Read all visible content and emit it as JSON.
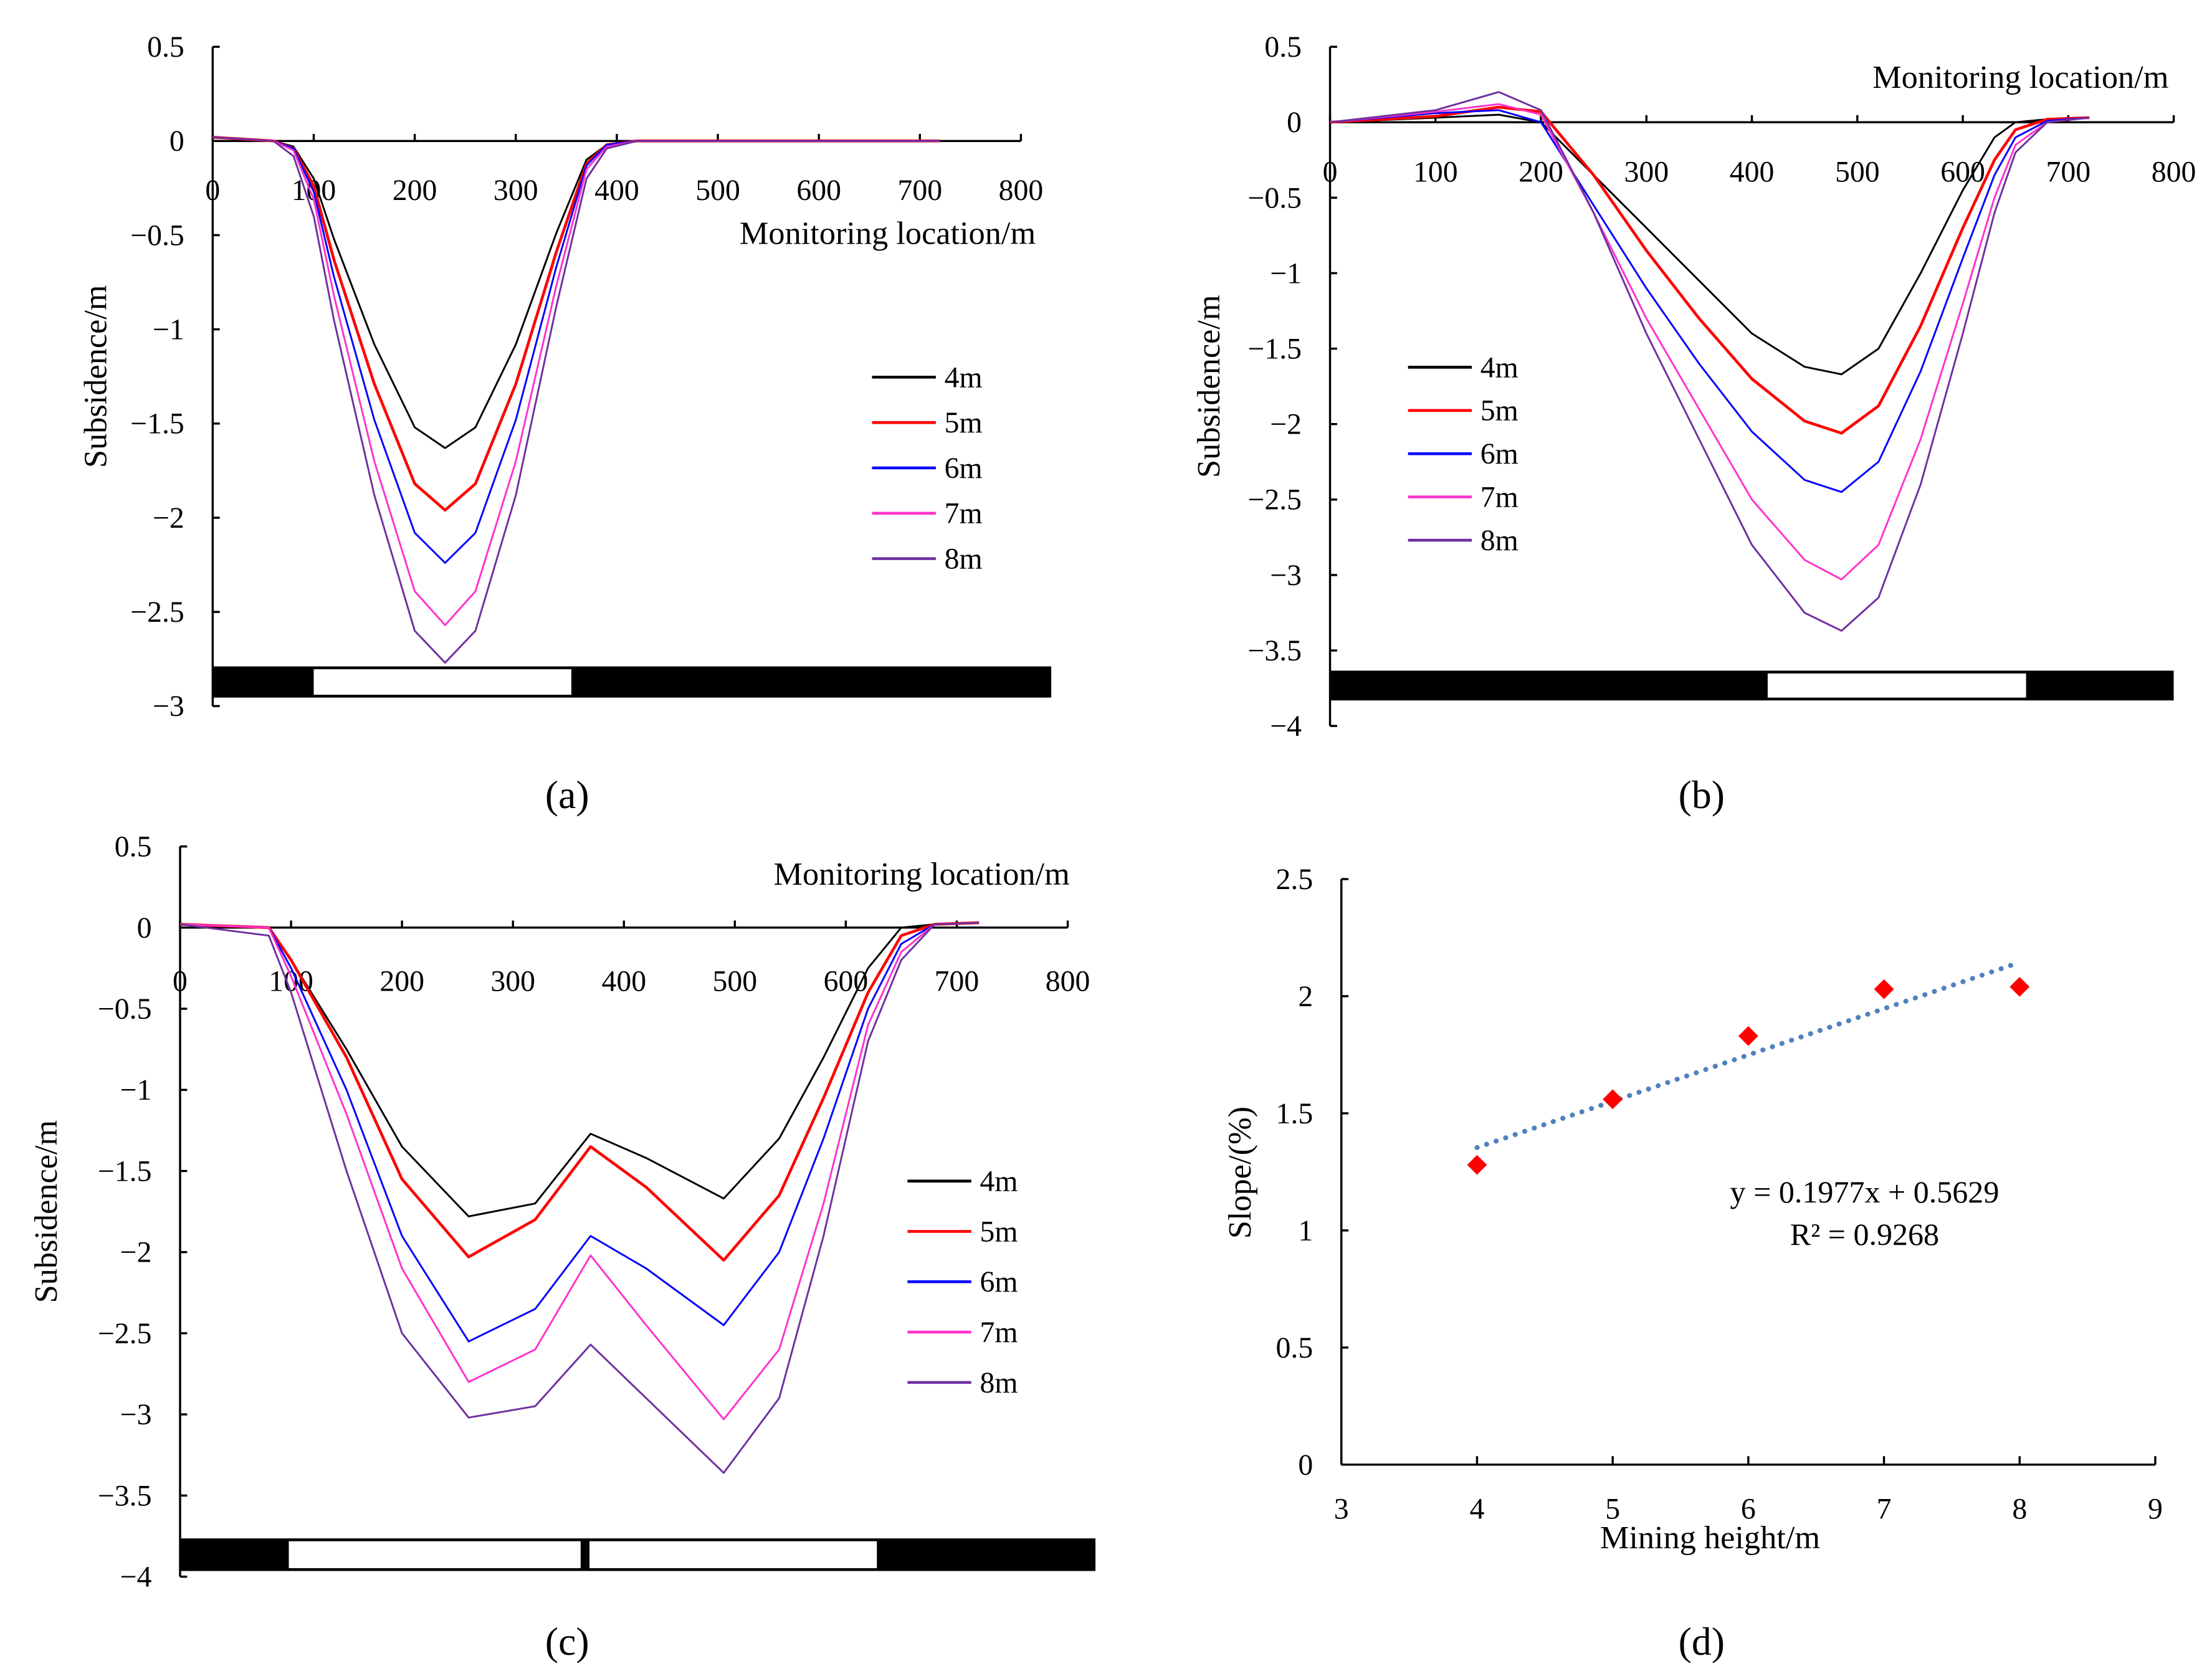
{
  "chart_data": [
    {
      "id": "a",
      "type": "line",
      "panel_label": "(a)",
      "xlabel": "Monitoring location/m",
      "ylabel": "Subsidence/m",
      "xlim": [
        0,
        800
      ],
      "ylim": [
        -3,
        0.5
      ],
      "xticks": [
        0,
        100,
        200,
        300,
        400,
        500,
        600,
        700,
        800
      ],
      "yticks": [
        0.5,
        0,
        -0.5,
        -1,
        -1.5,
        -2,
        -2.5,
        -3
      ],
      "ytick_labels": [
        "0.5",
        "0",
        "−0.5",
        "−1",
        "−1.5",
        "−2",
        "−2.5",
        "−3"
      ],
      "mined_zones": [
        [
          100,
          355
        ]
      ],
      "strip_extent": [
        0,
        830
      ],
      "x": [
        0,
        60,
        80,
        100,
        120,
        160,
        200,
        230,
        260,
        300,
        340,
        370,
        390,
        420,
        500,
        720
      ],
      "series": [
        {
          "name": "4m",
          "color": "#000000",
          "values": [
            0.02,
            0,
            -0.03,
            -0.2,
            -0.52,
            -1.08,
            -1.52,
            -1.63,
            -1.52,
            -1.08,
            -0.49,
            -0.1,
            -0.02,
            0,
            0,
            0
          ]
        },
        {
          "name": "5m",
          "color": "#ff0000",
          "values": [
            0.02,
            0,
            -0.04,
            -0.24,
            -0.63,
            -1.29,
            -1.82,
            -1.96,
            -1.82,
            -1.29,
            -0.59,
            -0.12,
            -0.02,
            0,
            0,
            0
          ]
        },
        {
          "name": "6m",
          "color": "#0000ff",
          "values": [
            0.02,
            0,
            -0.04,
            -0.27,
            -0.72,
            -1.48,
            -2.08,
            -2.24,
            -2.08,
            -1.48,
            -0.67,
            -0.13,
            -0.02,
            0,
            0,
            0
          ]
        },
        {
          "name": "7m",
          "color": "#ff33cc",
          "values": [
            0.02,
            0,
            -0.05,
            -0.31,
            -0.82,
            -1.7,
            -2.39,
            -2.57,
            -2.39,
            -1.7,
            -0.77,
            -0.15,
            -0.03,
            0,
            0,
            0
          ]
        },
        {
          "name": "8m",
          "color": "#7030a0",
          "values": [
            0.02,
            0,
            -0.08,
            -0.4,
            -0.95,
            -1.88,
            -2.6,
            -2.77,
            -2.6,
            -1.88,
            -0.88,
            -0.2,
            -0.04,
            0,
            0,
            0
          ]
        }
      ]
    },
    {
      "id": "b",
      "type": "line",
      "panel_label": "(b)",
      "xlabel": "Monitoring location/m",
      "ylabel": "Subsidence/m",
      "xlim": [
        0,
        800
      ],
      "ylim": [
        -4,
        0.5
      ],
      "xticks": [
        0,
        100,
        200,
        300,
        400,
        500,
        600,
        700,
        800
      ],
      "yticks": [
        0.5,
        0,
        -0.5,
        -1,
        -1.5,
        -2,
        -2.5,
        -3,
        -3.5,
        -4
      ],
      "ytick_labels": [
        "0.5",
        "0",
        "−0.5",
        "−1",
        "−1.5",
        "−2",
        "−2.5",
        "−3",
        "−3.5",
        "−4"
      ],
      "mined_zones": [
        [
          415,
          660
        ]
      ],
      "strip_extent": [
        0,
        800
      ],
      "x": [
        0,
        100,
        160,
        200,
        250,
        300,
        350,
        400,
        450,
        485,
        520,
        560,
        600,
        630,
        650,
        680,
        720
      ],
      "series": [
        {
          "name": "4m",
          "color": "#000000",
          "values": [
            0,
            0.03,
            0.05,
            0,
            -0.35,
            -0.7,
            -1.05,
            -1.4,
            -1.62,
            -1.67,
            -1.5,
            -1.0,
            -0.45,
            -0.1,
            0,
            0.02,
            0.03
          ]
        },
        {
          "name": "5m",
          "color": "#ff0000",
          "values": [
            0,
            0.04,
            0.1,
            0.07,
            -0.35,
            -0.85,
            -1.3,
            -1.7,
            -1.98,
            -2.06,
            -1.88,
            -1.35,
            -0.7,
            -0.25,
            -0.05,
            0.02,
            0.03
          ]
        },
        {
          "name": "6m",
          "color": "#0000ff",
          "values": [
            0,
            0.06,
            0.08,
            0,
            -0.55,
            -1.1,
            -1.6,
            -2.05,
            -2.37,
            -2.45,
            -2.25,
            -1.65,
            -0.9,
            -0.35,
            -0.1,
            0.01,
            0.03
          ]
        },
        {
          "name": "7m",
          "color": "#ff33cc",
          "values": [
            0,
            0.07,
            0.12,
            0.05,
            -0.6,
            -1.3,
            -1.9,
            -2.5,
            -2.9,
            -3.03,
            -2.8,
            -2.1,
            -1.2,
            -0.5,
            -0.15,
            0,
            0.03
          ]
        },
        {
          "name": "8m",
          "color": "#7030a0",
          "values": [
            0,
            0.08,
            0.2,
            0.08,
            -0.6,
            -1.4,
            -2.1,
            -2.8,
            -3.25,
            -3.37,
            -3.15,
            -2.4,
            -1.4,
            -0.6,
            -0.2,
            0,
            0.03
          ]
        }
      ]
    },
    {
      "id": "c",
      "type": "line",
      "panel_label": "(c)",
      "xlabel": "Monitoring location/m",
      "ylabel": "Subsidence/m",
      "xlim": [
        0,
        800
      ],
      "ylim": [
        -4,
        0.5
      ],
      "xticks": [
        0,
        100,
        200,
        300,
        400,
        500,
        600,
        700,
        800
      ],
      "yticks": [
        0.5,
        0,
        -0.5,
        -1,
        -1.5,
        -2,
        -2.5,
        -3,
        -3.5,
        -4
      ],
      "ytick_labels": [
        "0.5",
        "0",
        "−0.5",
        "−1",
        "−1.5",
        "−2",
        "−2.5",
        "−3",
        "−3.5",
        "−4"
      ],
      "mined_zones": [
        [
          98,
          361
        ],
        [
          369,
          628
        ]
      ],
      "strip_extent": [
        0,
        825
      ],
      "x": [
        0,
        80,
        100,
        150,
        200,
        260,
        320,
        370,
        420,
        490,
        540,
        580,
        620,
        650,
        680,
        720
      ],
      "series": [
        {
          "name": "4m",
          "color": "#000000",
          "values": [
            0.02,
            0,
            -0.2,
            -0.75,
            -1.35,
            -1.78,
            -1.7,
            -1.27,
            -1.42,
            -1.67,
            -1.3,
            -0.8,
            -0.25,
            0,
            0.02,
            0.03
          ]
        },
        {
          "name": "5m",
          "color": "#ff0000",
          "values": [
            0.02,
            0,
            -0.2,
            -0.8,
            -1.55,
            -2.03,
            -1.8,
            -1.35,
            -1.6,
            -2.05,
            -1.65,
            -1.05,
            -0.4,
            -0.05,
            0.02,
            0.03
          ]
        },
        {
          "name": "6m",
          "color": "#0000ff",
          "values": [
            0.02,
            0,
            -0.25,
            -1.0,
            -1.9,
            -2.55,
            -2.35,
            -1.9,
            -2.1,
            -2.45,
            -2.0,
            -1.3,
            -0.5,
            -0.1,
            0.02,
            0.03
          ]
        },
        {
          "name": "7m",
          "color": "#ff33cc",
          "values": [
            0.02,
            0,
            -0.3,
            -1.15,
            -2.1,
            -2.8,
            -2.6,
            -2.02,
            -2.45,
            -3.03,
            -2.6,
            -1.7,
            -0.6,
            -0.15,
            0.02,
            0.03
          ]
        },
        {
          "name": "8m",
          "color": "#7030a0",
          "values": [
            0.02,
            -0.05,
            -0.4,
            -1.5,
            -2.5,
            -3.02,
            -2.95,
            -2.57,
            -2.9,
            -3.36,
            -2.9,
            -1.9,
            -0.7,
            -0.2,
            0.02,
            0.03
          ]
        }
      ]
    },
    {
      "id": "d",
      "type": "scatter",
      "panel_label": "(d)",
      "xlabel": "Mining height/m",
      "ylabel": "Slope/(%)",
      "xlim": [
        3,
        9
      ],
      "ylim": [
        0,
        2.5
      ],
      "xticks": [
        3,
        4,
        5,
        6,
        7,
        8,
        9
      ],
      "yticks": [
        0,
        0.5,
        1,
        1.5,
        2,
        2.5
      ],
      "ytick_labels": [
        "0",
        "0.5",
        "1",
        "1.5",
        "2",
        "2.5"
      ],
      "points": {
        "x": [
          4,
          5,
          6,
          7,
          8
        ],
        "y": [
          1.28,
          1.56,
          1.83,
          2.03,
          2.04
        ],
        "color": "#ff0000"
      },
      "trendline": {
        "slope": 0.1977,
        "intercept": 0.5629,
        "range": [
          4,
          7.95
        ],
        "color": "#4f81bd"
      },
      "equation": "y = 0.1977x + 0.5629",
      "r_squared": "R² = 0.9268"
    }
  ]
}
